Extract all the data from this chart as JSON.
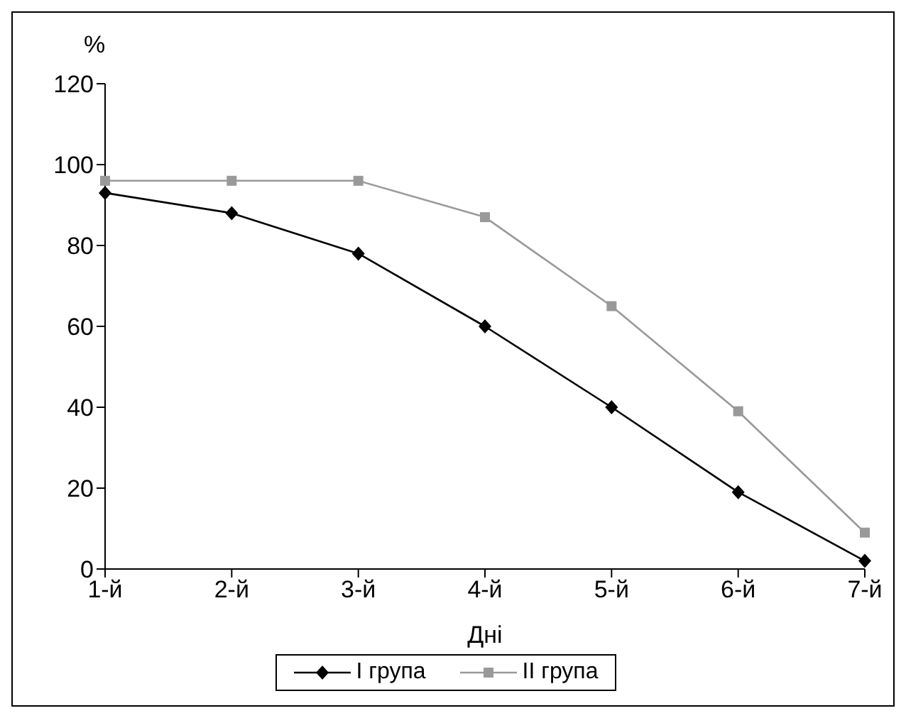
{
  "chart_data": {
    "type": "line",
    "ylabel": "%",
    "xlabel": "Дні",
    "categories": [
      "1-й",
      "2-й",
      "3-й",
      "4-й",
      "5-й",
      "6-й",
      "7-й"
    ],
    "series": [
      {
        "name": "I група",
        "color": "#000000",
        "marker": "diamond",
        "values": [
          93,
          88,
          78,
          60,
          40,
          19,
          2
        ]
      },
      {
        "name": "II група",
        "color": "#999999",
        "marker": "square",
        "values": [
          96,
          96,
          96,
          87,
          65,
          39,
          9
        ]
      }
    ],
    "ylim": [
      0,
      120
    ],
    "yticks": [
      0,
      20,
      40,
      60,
      80,
      100,
      120
    ],
    "grid": false,
    "legend": "bottom"
  }
}
